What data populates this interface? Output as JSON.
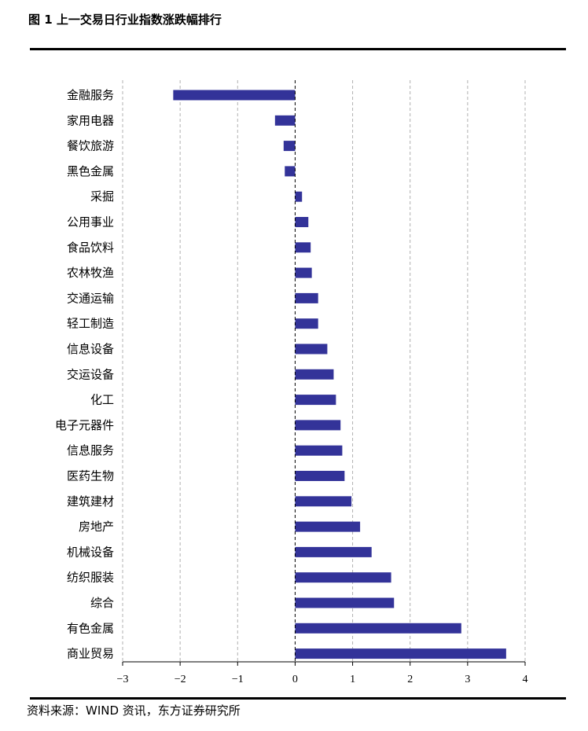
{
  "title": "图 1  上一交易日行业指数涨跌幅排行",
  "source": "资料来源：WIND 资讯，东方证券研究所",
  "colors": {
    "bar": "#333399",
    "grid": "#b0b0b0",
    "axis": "#000000"
  },
  "chart_data": {
    "type": "bar",
    "orientation": "horizontal",
    "title": "上一交易日行业指数涨跌幅排行",
    "xlabel": "",
    "ylabel": "",
    "xlim": [
      -3,
      4
    ],
    "xticks": [
      -3,
      -2,
      -1,
      0,
      1,
      2,
      3,
      4
    ],
    "xtick_labels": [
      "−3",
      "−2",
      "−1",
      "0",
      "1",
      "2",
      "3",
      "4"
    ],
    "grid": "vertical dashed",
    "categories": [
      "金融服务",
      "家用电器",
      "餐饮旅游",
      "黑色金属",
      "采掘",
      "公用事业",
      "食品饮料",
      "农林牧渔",
      "交通运输",
      "轻工制造",
      "信息设备",
      "交运设备",
      "化工",
      "电子元器件",
      "信息服务",
      "医药生物",
      "建筑建材",
      "房地产",
      "机械设备",
      "纺织服装",
      "综合",
      "有色金属",
      "商业贸易"
    ],
    "values": [
      -2.12,
      -0.35,
      -0.2,
      -0.18,
      0.12,
      0.23,
      0.27,
      0.29,
      0.4,
      0.4,
      0.56,
      0.67,
      0.71,
      0.79,
      0.82,
      0.86,
      0.98,
      1.13,
      1.33,
      1.67,
      1.72,
      2.89,
      3.67
    ]
  }
}
